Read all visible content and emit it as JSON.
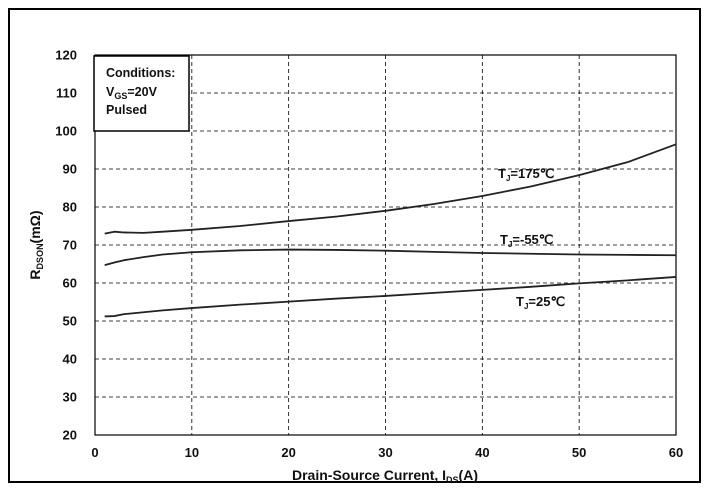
{
  "chart_data": {
    "type": "line",
    "xlabel": {
      "main": "Drain-Source Current, I",
      "sub": "DS",
      "unit": "(A)"
    },
    "ylabel": {
      "main": "R",
      "sub": "DSON",
      "unit": "(mΩ)"
    },
    "xlim": [
      0,
      60
    ],
    "ylim": [
      20,
      120
    ],
    "xticks": [
      "0",
      "10",
      "20",
      "30",
      "40",
      "50",
      "60"
    ],
    "yticks": [
      "20",
      "30",
      "40",
      "50",
      "60",
      "70",
      "80",
      "90",
      "100",
      "110",
      "120"
    ],
    "grid": true,
    "conditions": {
      "title": "Conditions:",
      "vgs_main": "V",
      "vgs_sub": "GS",
      "vgs_value": "=20V",
      "mode": "Pulsed"
    },
    "series": [
      {
        "name": "175",
        "label_main": "T",
        "label_sub": "J",
        "label_value": "=175℃",
        "x": [
          1,
          2,
          3,
          5,
          7,
          10,
          15,
          20,
          25,
          30,
          35,
          40,
          45,
          50,
          55,
          60
        ],
        "y": [
          73,
          73.5,
          73.3,
          73.2,
          73.5,
          74,
          75,
          76.3,
          77.5,
          79,
          80.8,
          82.9,
          85.4,
          88.4,
          91.8,
          96.5
        ]
      },
      {
        "name": "-55",
        "label_main": "T",
        "label_sub": "J",
        "label_value": "=-55℃",
        "x": [
          1,
          2,
          3,
          5,
          7,
          10,
          15,
          20,
          25,
          30,
          35,
          40,
          45,
          50,
          55,
          60
        ],
        "y": [
          64.7,
          65.4,
          66,
          66.8,
          67.5,
          68.1,
          68.6,
          68.8,
          68.7,
          68.5,
          68.2,
          67.9,
          67.7,
          67.5,
          67.4,
          67.3
        ]
      },
      {
        "name": "25",
        "label_main": "T",
        "label_sub": "J",
        "label_value": "=25℃",
        "x": [
          1,
          2,
          3,
          5,
          7,
          10,
          15,
          20,
          25,
          30,
          35,
          40,
          45,
          50,
          55,
          60
        ],
        "y": [
          51.2,
          51.3,
          51.8,
          52.3,
          52.8,
          53.4,
          54.3,
          55.1,
          55.9,
          56.6,
          57.4,
          58.2,
          59,
          59.9,
          60.7,
          61.6
        ]
      }
    ]
  }
}
